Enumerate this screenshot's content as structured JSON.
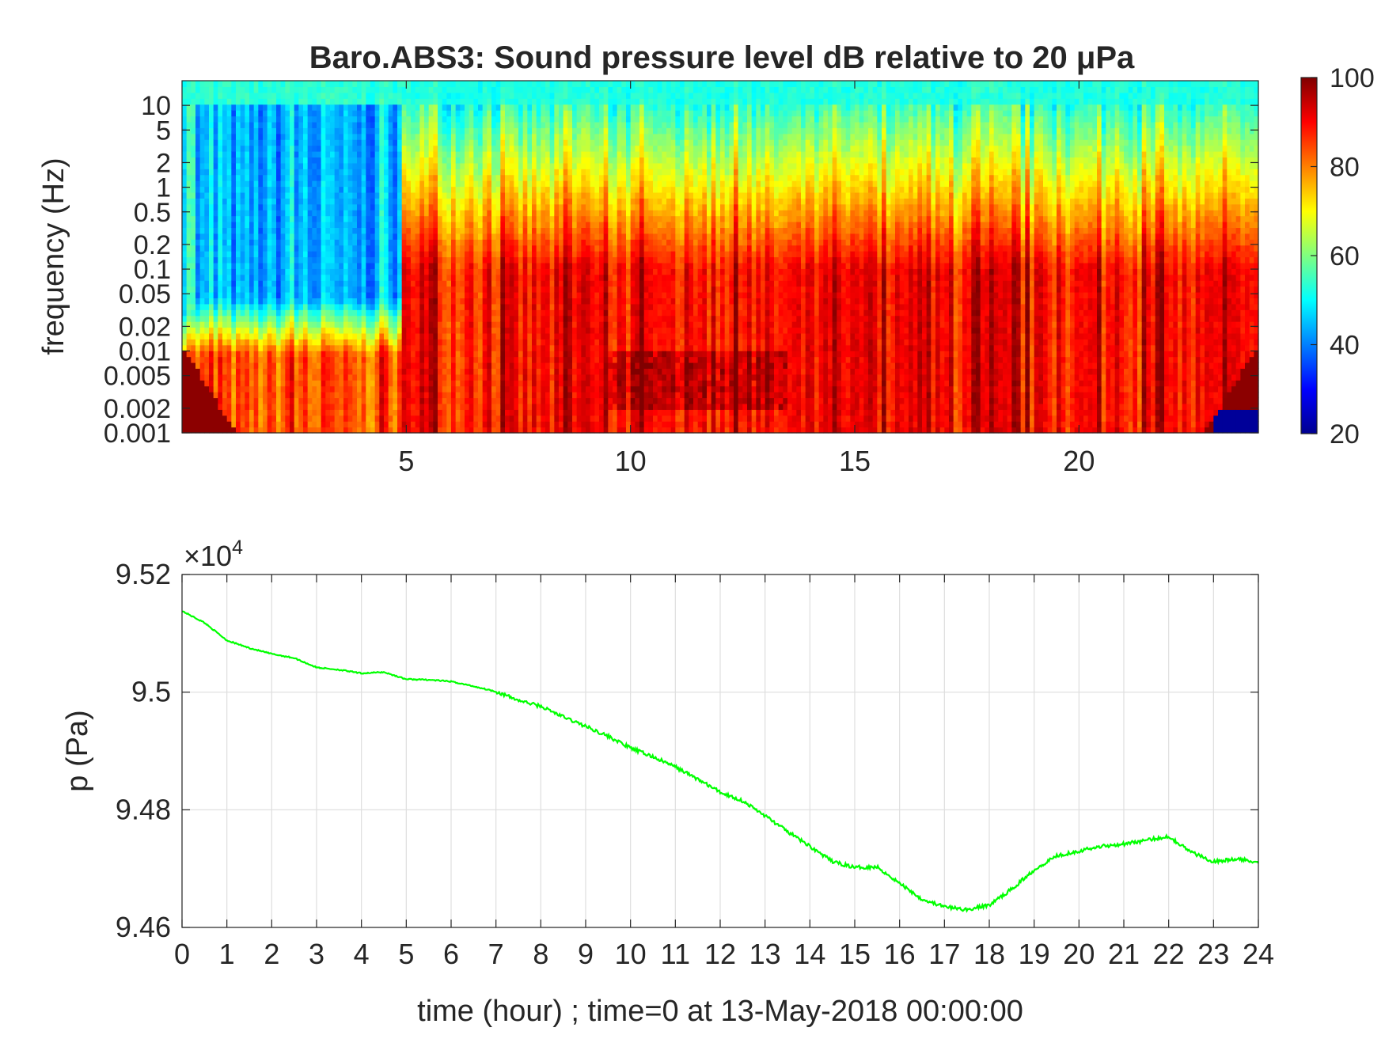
{
  "chart_data": [
    {
      "type": "heatmap",
      "title": "Baro.ABS3: Sound pressure level dB relative to 20 μPa",
      "xlabel": "",
      "ylabel": "frequency (Hz)",
      "xlim": [
        0,
        24
      ],
      "x_ticks": [
        "5",
        "10",
        "15",
        "20"
      ],
      "y_scale": "log",
      "ylim": [
        0.001,
        20
      ],
      "y_ticks": [
        "0.001",
        "0.002",
        "0.005",
        "0.01",
        "0.02",
        "0.05",
        "0.1",
        "0.2",
        "0.5",
        "1",
        "2",
        "5",
        "10"
      ],
      "colorbar": {
        "range": [
          20,
          100
        ],
        "ticks": [
          "20",
          "40",
          "60",
          "80",
          "100"
        ],
        "colormap": "jet"
      },
      "regions": [
        {
          "t_start": 0.3,
          "t_end": 4.9,
          "low_freq_edge_hz": 0.02,
          "level_above_db": 42,
          "level_below_db": 82
        },
        {
          "t_start": 4.9,
          "t_end": 24,
          "high_freq_edge_hz": 5,
          "level_above_db": 52,
          "level_below_db": 88
        },
        {
          "t_start": 9.5,
          "t_end": 13.5,
          "band_hz": [
            0.002,
            0.01
          ],
          "level_db": 97
        }
      ],
      "grid": false,
      "legend": "none"
    },
    {
      "type": "line",
      "xlabel": "time (hour) ; time=0 at 13-May-2018 00:00:00",
      "ylabel": "p (Pa)",
      "exponent_label": "×10",
      "exponent_power": "4",
      "xlim": [
        0,
        24
      ],
      "ylim": [
        9.46,
        9.52
      ],
      "x_ticks": [
        "0",
        "1",
        "2",
        "3",
        "4",
        "5",
        "6",
        "7",
        "8",
        "9",
        "10",
        "11",
        "12",
        "13",
        "14",
        "15",
        "16",
        "17",
        "18",
        "19",
        "20",
        "21",
        "22",
        "23",
        "24"
      ],
      "y_ticks": [
        "9.46",
        "9.48",
        "9.5",
        "9.52"
      ],
      "grid": true,
      "legend": "none",
      "series": [
        {
          "color": "#00ff00",
          "x": [
            0,
            0.5,
            1,
            1.5,
            2,
            2.5,
            3,
            3.5,
            4,
            4.5,
            5,
            5.5,
            6,
            6.5,
            7,
            7.5,
            8,
            8.5,
            9,
            9.5,
            10,
            10.5,
            11,
            11.5,
            12,
            12.5,
            13,
            13.5,
            14,
            14.5,
            15,
            15.5,
            16,
            16.5,
            17,
            17.5,
            18,
            18.5,
            19,
            19.5,
            20,
            20.5,
            21,
            21.5,
            22,
            22.5,
            23,
            23.5,
            24
          ],
          "values": [
            9.5138,
            9.5118,
            9.5088,
            9.5075,
            9.5065,
            9.5058,
            9.5042,
            9.5038,
            9.5032,
            9.5034,
            9.5022,
            9.5021,
            9.5018,
            9.501,
            9.5001,
            9.4986,
            9.4976,
            9.4958,
            9.4942,
            9.4925,
            9.4905,
            9.489,
            9.4873,
            9.4852,
            9.483,
            9.4815,
            9.479,
            9.4763,
            9.4738,
            9.4712,
            9.4702,
            9.4703,
            9.4675,
            9.4648,
            9.4635,
            9.463,
            9.4638,
            9.4665,
            9.4698,
            9.4722,
            9.473,
            9.4738,
            9.4742,
            9.4748,
            9.4755,
            9.4728,
            9.4712,
            9.4716,
            9.4712
          ]
        }
      ]
    }
  ]
}
